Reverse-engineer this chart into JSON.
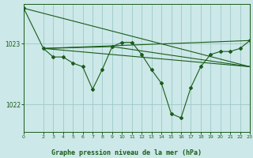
{
  "title": "Graphe pression niveau de la mer (hPa)",
  "background_color": "#cce8e8",
  "grid_color": "#9ec8c8",
  "line_color": "#1a5c1a",
  "xlim": [
    0,
    23
  ],
  "ylim": [
    1021.55,
    1023.65
  ],
  "yticks": [
    1022,
    1023
  ],
  "xticks": [
    0,
    2,
    3,
    4,
    5,
    6,
    7,
    8,
    9,
    10,
    11,
    12,
    13,
    14,
    15,
    16,
    17,
    18,
    19,
    20,
    21,
    22,
    23
  ],
  "main_x": [
    0,
    2,
    3,
    4,
    5,
    6,
    7,
    8,
    9,
    10,
    11,
    12,
    13,
    14,
    15,
    16,
    17,
    18,
    19,
    20,
    21,
    22,
    23
  ],
  "main_y": [
    1023.58,
    1022.92,
    1022.78,
    1022.78,
    1022.68,
    1022.62,
    1022.25,
    1022.58,
    1022.95,
    1023.02,
    1023.02,
    1022.82,
    1022.57,
    1022.35,
    1021.85,
    1021.78,
    1022.28,
    1022.62,
    1022.82,
    1022.87,
    1022.87,
    1022.92,
    1023.05
  ],
  "trend1_x": [
    0,
    23
  ],
  "trend1_y": [
    1023.58,
    1022.62
  ],
  "trend2_x": [
    2,
    23
  ],
  "trend2_y": [
    1022.92,
    1023.05
  ],
  "trend3_x": [
    2,
    9,
    23
  ],
  "trend3_y": [
    1022.92,
    1022.95,
    1022.62
  ],
  "trend4_x": [
    2,
    23
  ],
  "trend4_y": [
    1022.92,
    1022.62
  ]
}
